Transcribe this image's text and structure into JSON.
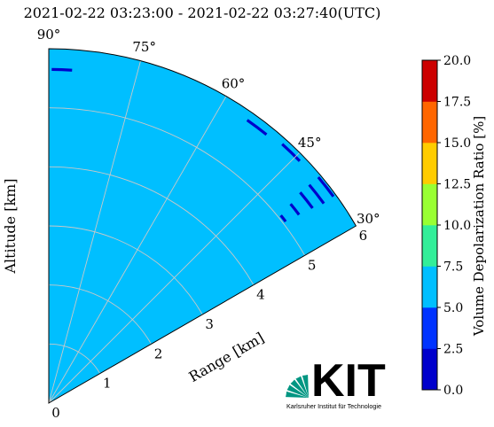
{
  "chart_data": {
    "type": "heatmap",
    "title": "2021-02-22 03:23:00 - 2021-02-22 03:27:40(UTC)",
    "xlabel": "Range [km]",
    "ylabel": "Altitude [km]",
    "range_ticks": [
      "0",
      "1",
      "2",
      "3",
      "4",
      "5",
      "6"
    ],
    "range_max_km": 6,
    "angle_ticks": [
      {
        "value": 90,
        "label": "90°"
      },
      {
        "value": 75,
        "label": "75°"
      },
      {
        "value": 60,
        "label": "60°"
      },
      {
        "value": 45,
        "label": "45°"
      },
      {
        "value": 30,
        "label": "30°"
      }
    ],
    "angle_range_deg": [
      30,
      90
    ],
    "grid": true,
    "background_value": 5.5,
    "colorbar": {
      "label": "Volume Depolarization Ratio [%]",
      "ticks": [
        "0.0",
        "2.5",
        "5.0",
        "7.5",
        "10.0",
        "12.5",
        "15.0",
        "17.5",
        "20.0"
      ],
      "range": [
        0,
        20
      ],
      "colors": [
        "#0000cc",
        "#0033ff",
        "#00bfff",
        "#33ee99",
        "#99ff33",
        "#ffcc00",
        "#ff6600",
        "#cc0000"
      ]
    },
    "features": [
      {
        "kind": "arc",
        "r_km": 5.65,
        "theta_deg": [
          86,
          89.5
        ],
        "value": 2.0
      },
      {
        "kind": "arc",
        "r_km": 5.2,
        "theta_deg": [
          76.5,
          77.5
        ],
        "value": 6.5
      },
      {
        "kind": "arc",
        "r_km": 5.85,
        "theta_deg": [
          51,
          55
        ],
        "value": 2.0
      },
      {
        "kind": "arc",
        "r_km": 5.9,
        "theta_deg": [
          44,
          48
        ],
        "value": 2.0
      },
      {
        "kind": "arc",
        "r_km": 5.95,
        "theta_deg": [
          36,
          40
        ],
        "value": 2.0
      },
      {
        "kind": "arc",
        "r_km": 5.75,
        "theta_deg": [
          36,
          40
        ],
        "value": 2.0
      },
      {
        "kind": "arc",
        "r_km": 5.55,
        "theta_deg": [
          36.5,
          40
        ],
        "value": 2.0
      },
      {
        "kind": "arc",
        "r_km": 5.3,
        "theta_deg": [
          37,
          39.5
        ],
        "value": 2.0
      },
      {
        "kind": "arc",
        "r_km": 5.05,
        "theta_deg": [
          37.5,
          39
        ],
        "value": 2.0
      },
      {
        "kind": "arc",
        "r_km": 4.5,
        "theta_deg": [
          34,
          35.5
        ],
        "value": 6.5
      },
      {
        "kind": "arc",
        "r_km": 3.8,
        "theta_deg": [
          33,
          34
        ],
        "value": 6.5
      },
      {
        "kind": "arc",
        "r_km": 3.5,
        "theta_deg": [
          32,
          32.6
        ],
        "value": 6.5
      },
      {
        "kind": "arc",
        "r_km": 2.9,
        "theta_deg": [
          31,
          31.5
        ],
        "value": 6.5
      },
      {
        "kind": "arc",
        "r_km": 0.08,
        "theta_deg": [
          35,
          60
        ],
        "value": 7.0
      }
    ]
  },
  "logo": {
    "name": "KIT",
    "subtitle": "Karlsruher Institut für Technologie"
  }
}
